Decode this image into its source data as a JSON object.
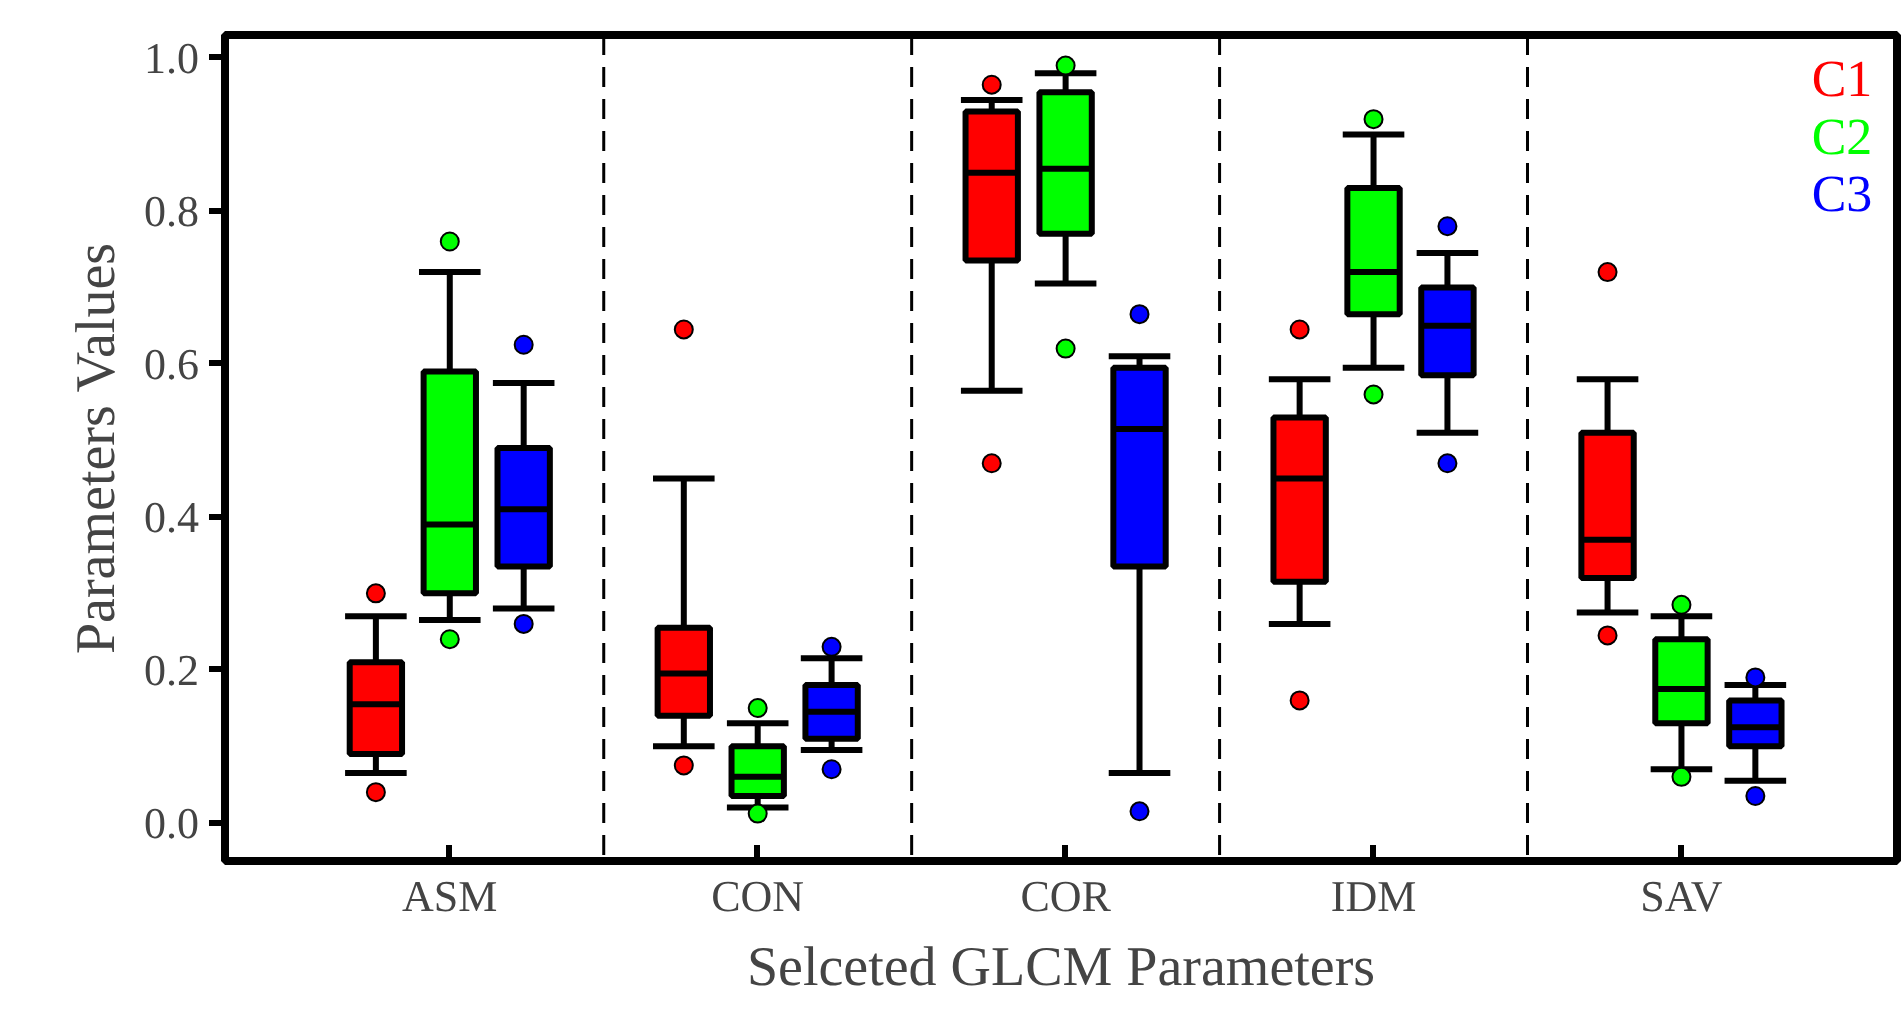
{
  "chart_data": {
    "type": "box",
    "xlabel": "Selceted GLCM Parameters",
    "ylabel": "Parameters Values",
    "categories": [
      "ASM",
      "CON",
      "COR",
      "IDM",
      "SAV"
    ],
    "ylim": [
      -0.05,
      1.03
    ],
    "yticks": [
      {
        "value": 0,
        "label": "0.0"
      },
      0.2,
      0.4,
      0.6,
      0.8,
      {
        "value": 1,
        "label": "1.0"
      }
    ],
    "legend": "top right",
    "grid": false,
    "series": [
      {
        "name": "C1",
        "color": "#ff0000",
        "boxes": [
          {
            "low": 0.065,
            "q1": 0.09,
            "median": 0.155,
            "q3": 0.21,
            "high": 0.27,
            "outliers": [
              0.04,
              0.3
            ]
          },
          {
            "low": 0.1,
            "q1": 0.14,
            "median": 0.195,
            "q3": 0.255,
            "high": 0.45,
            "outliers": [
              0.075,
              0.645
            ]
          },
          {
            "low": 0.565,
            "q1": 0.735,
            "median": 0.85,
            "q3": 0.93,
            "high": 0.945,
            "outliers": [
              0.47,
              0.965
            ]
          },
          {
            "low": 0.26,
            "q1": 0.315,
            "median": 0.45,
            "q3": 0.53,
            "high": 0.58,
            "outliers": [
              0.16,
              0.645
            ]
          },
          {
            "low": 0.275,
            "q1": 0.32,
            "median": 0.37,
            "q3": 0.51,
            "high": 0.58,
            "outliers": [
              0.245,
              0.72
            ]
          }
        ]
      },
      {
        "name": "C2",
        "color": "#00ff00",
        "boxes": [
          {
            "low": 0.265,
            "q1": 0.3,
            "median": 0.39,
            "q3": 0.59,
            "high": 0.72,
            "outliers": [
              0.24,
              0.76
            ]
          },
          {
            "low": 0.02,
            "q1": 0.035,
            "median": 0.06,
            "q3": 0.1,
            "high": 0.13,
            "outliers": [
              0.012,
              0.15
            ]
          },
          {
            "low": 0.705,
            "q1": 0.77,
            "median": 0.855,
            "q3": 0.955,
            "high": 0.98,
            "outliers": [
              0.62,
              0.99
            ]
          },
          {
            "low": 0.595,
            "q1": 0.665,
            "median": 0.72,
            "q3": 0.83,
            "high": 0.9,
            "outliers": [
              0.56,
              0.92
            ]
          },
          {
            "low": 0.07,
            "q1": 0.13,
            "median": 0.175,
            "q3": 0.24,
            "high": 0.27,
            "outliers": [
              0.06,
              0.285
            ]
          }
        ]
      },
      {
        "name": "C3",
        "color": "#0000ff",
        "boxes": [
          {
            "low": 0.28,
            "q1": 0.335,
            "median": 0.41,
            "q3": 0.49,
            "high": 0.575,
            "outliers": [
              0.26,
              0.625
            ]
          },
          {
            "low": 0.095,
            "q1": 0.11,
            "median": 0.145,
            "q3": 0.18,
            "high": 0.215,
            "outliers": [
              0.07,
              0.23
            ]
          },
          {
            "low": 0.065,
            "q1": 0.335,
            "median": 0.515,
            "q3": 0.595,
            "high": 0.61,
            "outliers": [
              0.015,
              0.665
            ]
          },
          {
            "low": 0.51,
            "q1": 0.585,
            "median": 0.65,
            "q3": 0.7,
            "high": 0.745,
            "outliers": [
              0.47,
              0.78
            ]
          },
          {
            "low": 0.055,
            "q1": 0.1,
            "median": 0.125,
            "q3": 0.16,
            "high": 0.18,
            "outliers": [
              0.035,
              0.19
            ]
          }
        ]
      }
    ]
  }
}
